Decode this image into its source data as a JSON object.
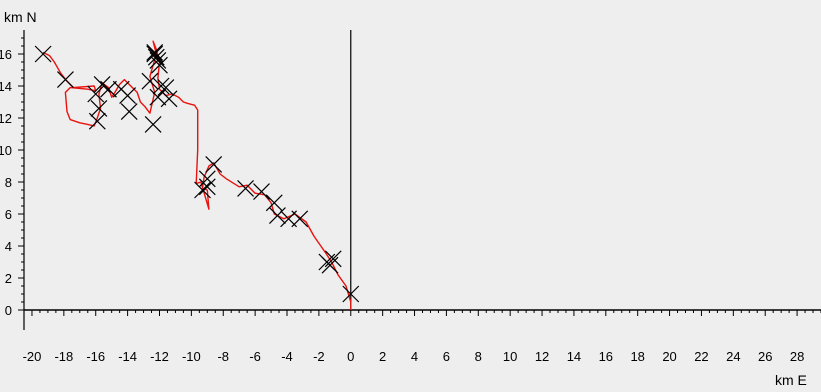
{
  "chart_data": {
    "type": "scatter",
    "title": "",
    "xlabel": "km E",
    "ylabel": "km N",
    "xlim": [
      -20.5,
      29.5
    ],
    "ylim": [
      -0.5,
      17.5
    ],
    "x_ticks": [
      -20,
      -18,
      -16,
      -14,
      -12,
      -10,
      -8,
      -6,
      -4,
      -2,
      0,
      2,
      4,
      6,
      8,
      10,
      12,
      14,
      16,
      18,
      20,
      22,
      24,
      26,
      28
    ],
    "y_ticks": [
      0,
      2,
      4,
      6,
      8,
      10,
      12,
      14,
      16
    ],
    "grid": false,
    "colors": {
      "track": "#e8130e",
      "markers": "#000000",
      "axes": "#000000",
      "background": "#eeeeee"
    },
    "series": [
      {
        "kind": "line",
        "points": [
          [
            0.0,
            0.0
          ],
          [
            0.0,
            0.5
          ],
          [
            -0.3,
            1.5
          ],
          [
            -0.8,
            2.2
          ],
          [
            -1.2,
            3.0
          ],
          [
            -1.6,
            3.6
          ],
          [
            -2.3,
            4.6
          ],
          [
            -2.8,
            5.5
          ],
          [
            -3.5,
            6.0
          ],
          [
            -4.2,
            5.7
          ],
          [
            -4.8,
            6.0
          ],
          [
            -5.0,
            6.7
          ],
          [
            -5.4,
            7.2
          ],
          [
            -6.0,
            7.3
          ],
          [
            -6.5,
            7.8
          ],
          [
            -7.0,
            7.7
          ],
          [
            -7.8,
            8.2
          ],
          [
            -8.2,
            8.5
          ],
          [
            -8.6,
            9.2
          ],
          [
            -8.9,
            9.0
          ],
          [
            -9.2,
            8.3
          ],
          [
            -9.3,
            7.6
          ],
          [
            -9.0,
            7.5
          ],
          [
            -8.9,
            6.3
          ],
          [
            -9.4,
            8.0
          ],
          [
            -9.7,
            7.9
          ],
          [
            -9.6,
            10.0
          ],
          [
            -9.6,
            12.5
          ],
          [
            -9.8,
            12.8
          ],
          [
            -10.2,
            12.9
          ],
          [
            -10.5,
            13.0
          ],
          [
            -10.8,
            13.3
          ],
          [
            -11.2,
            13.5
          ],
          [
            -11.6,
            13.4
          ],
          [
            -12.0,
            13.8
          ],
          [
            -12.1,
            14.5
          ],
          [
            -12.0,
            15.5
          ],
          [
            -12.2,
            16.3
          ],
          [
            -12.4,
            16.8
          ],
          [
            -12.2,
            16.0
          ],
          [
            -12.6,
            14.6
          ],
          [
            -12.3,
            13.6
          ],
          [
            -12.6,
            12.3
          ],
          [
            -12.9,
            12.7
          ],
          [
            -13.2,
            13.0
          ],
          [
            -13.4,
            13.6
          ],
          [
            -13.8,
            14.0
          ],
          [
            -14.2,
            14.4
          ],
          [
            -14.5,
            14.1
          ],
          [
            -14.8,
            13.6
          ],
          [
            -15.0,
            13.3
          ],
          [
            -15.2,
            13.9
          ],
          [
            -15.6,
            14.2
          ],
          [
            -15.8,
            13.5
          ],
          [
            -15.7,
            12.6
          ],
          [
            -15.9,
            12.0
          ],
          [
            -16.1,
            11.5
          ],
          [
            -16.5,
            11.6
          ],
          [
            -17.0,
            11.7
          ],
          [
            -17.6,
            11.9
          ],
          [
            -17.8,
            12.4
          ],
          [
            -17.9,
            13.6
          ],
          [
            -17.6,
            13.9
          ],
          [
            -16.5,
            13.8
          ],
          [
            -16.0,
            13.7
          ],
          [
            -16.1,
            14.0
          ],
          [
            -17.4,
            13.9
          ],
          [
            -17.8,
            14.3
          ],
          [
            -18.2,
            14.8
          ],
          [
            -18.6,
            15.5
          ],
          [
            -18.9,
            15.9
          ],
          [
            -19.3,
            16.1
          ]
        ]
      },
      {
        "kind": "markers",
        "marker": "x",
        "points": [
          [
            -19.3,
            16.0
          ],
          [
            -17.9,
            14.4
          ],
          [
            -16.0,
            13.5
          ],
          [
            -15.8,
            12.6
          ],
          [
            -15.9,
            11.8
          ],
          [
            -15.6,
            14.1
          ],
          [
            -15.2,
            13.8
          ],
          [
            -14.4,
            13.8
          ],
          [
            -14.0,
            13.4
          ],
          [
            -13.9,
            12.4
          ],
          [
            -12.4,
            11.6
          ],
          [
            -12.6,
            14.3
          ],
          [
            -12.1,
            13.3
          ],
          [
            -12.3,
            16.0
          ],
          [
            -12.2,
            15.8
          ],
          [
            -12.1,
            15.6
          ],
          [
            -12.0,
            15.3
          ],
          [
            -11.9,
            14.0
          ],
          [
            -11.6,
            13.9
          ],
          [
            -11.4,
            13.2
          ],
          [
            -12.3,
            16.1
          ],
          [
            -8.6,
            9.1
          ],
          [
            -9.0,
            8.2
          ],
          [
            -9.3,
            7.5
          ],
          [
            -9.0,
            7.7
          ],
          [
            -6.6,
            7.6
          ],
          [
            -5.6,
            7.4
          ],
          [
            -4.8,
            6.7
          ],
          [
            -4.6,
            5.9
          ],
          [
            -3.9,
            5.7
          ],
          [
            -3.2,
            5.7
          ],
          [
            -1.5,
            3.0
          ],
          [
            -1.1,
            3.2
          ],
          [
            -1.3,
            2.8
          ],
          [
            0.0,
            1.0
          ]
        ]
      }
    ]
  }
}
